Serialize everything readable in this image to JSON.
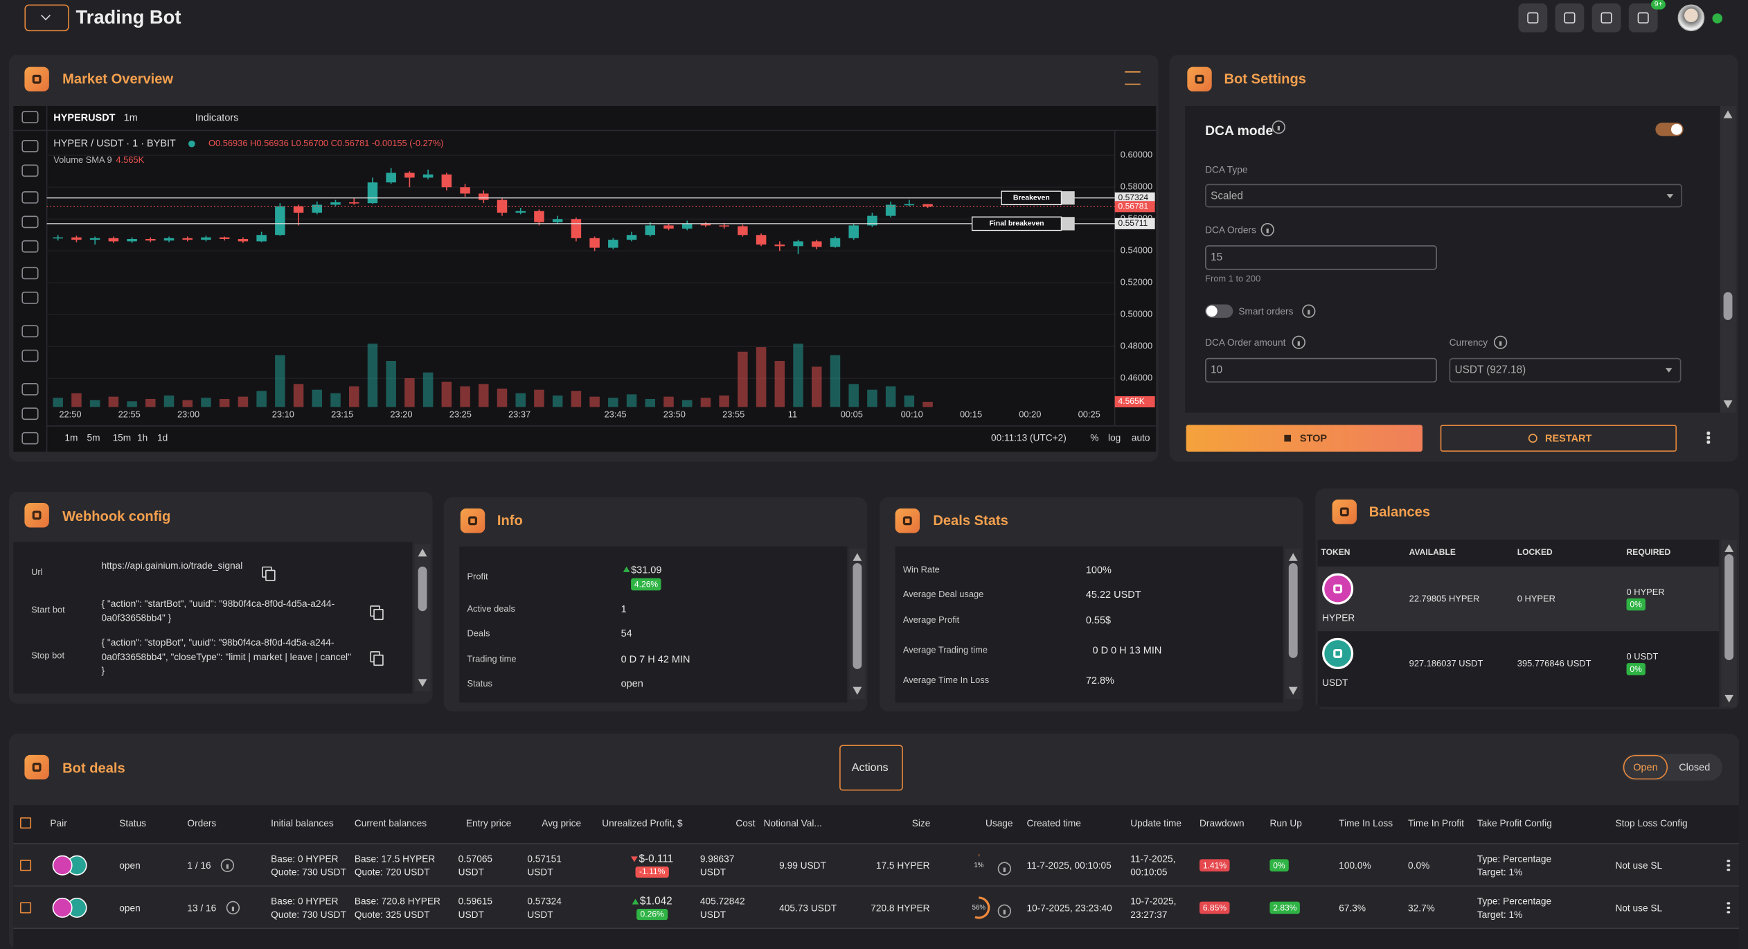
{
  "header": {
    "title": "Trading Bot",
    "badge": "9+"
  },
  "market_overview": {
    "title": "Market Overview",
    "toolbar": {
      "symbol": "HYPERUSDT",
      "interval": "1m",
      "indicators": "Indicators"
    },
    "legend": {
      "pair": "HYPER / USDT · 1 · BYBIT",
      "ohlc": "O0.56936 H0.56936 L0.56700 C0.56781 -0.00155 (-0.27%)",
      "volume": "Volume SMA 9",
      "volume_value": "4.565K"
    },
    "footer": {
      "ranges": [
        "1m",
        "5m",
        "15m",
        "1h",
        "1d"
      ],
      "clock": "00:11:13 (UTC+2)",
      "options": [
        "%",
        "log",
        "auto"
      ]
    }
  },
  "chart_data": {
    "type": "candlestick",
    "up_color": "#26a69a",
    "down_color": "#ef5350",
    "ylim": [
      0.442,
      0.61
    ],
    "yticks": [
      {
        "value": 0.46,
        "label": "0.46000"
      },
      {
        "value": 0.48,
        "label": "0.48000"
      },
      {
        "value": 0.5,
        "label": "0.50000"
      },
      {
        "value": 0.52,
        "label": "0.52000"
      },
      {
        "value": 0.54,
        "label": "0.54000"
      },
      {
        "value": 0.56,
        "label": "0.56000"
      },
      {
        "value": 0.58,
        "label": "0.58000"
      },
      {
        "value": 0.6,
        "label": "0.60000"
      }
    ],
    "time_labels": [
      "22:50",
      "22:55",
      "23:00",
      "23:10",
      "23:15",
      "23:20",
      "23:25",
      "23:37",
      "23:45",
      "23:50",
      "23:55",
      "11",
      "00:05",
      "00:10",
      "00:15",
      "00:20",
      "00:25"
    ],
    "open": [
      0.548,
      0.5485,
      0.547,
      0.548,
      0.546,
      0.5475,
      0.5465,
      0.548,
      0.547,
      0.5485,
      0.5475,
      0.546,
      0.55,
      0.568,
      0.564,
      0.569,
      0.5705,
      0.57,
      0.583,
      0.589,
      0.586,
      0.588,
      0.58,
      0.576,
      0.572,
      0.564,
      0.565,
      0.558,
      0.56,
      0.548,
      0.542,
      0.547,
      0.55,
      0.556,
      0.554,
      0.557,
      0.556,
      0.5555,
      0.55,
      0.544,
      0.543,
      0.546,
      0.5425,
      0.548,
      0.556,
      0.562,
      0.569,
      0.56936
    ],
    "high": [
      0.55,
      0.5495,
      0.549,
      0.549,
      0.5485,
      0.5485,
      0.549,
      0.549,
      0.5495,
      0.549,
      0.5485,
      0.552,
      0.57,
      0.569,
      0.571,
      0.572,
      0.573,
      0.586,
      0.592,
      0.59,
      0.591,
      0.589,
      0.582,
      0.578,
      0.573,
      0.567,
      0.566,
      0.562,
      0.561,
      0.549,
      0.548,
      0.552,
      0.558,
      0.557,
      0.559,
      0.558,
      0.5575,
      0.5565,
      0.551,
      0.546,
      0.547,
      0.547,
      0.549,
      0.557,
      0.564,
      0.571,
      0.572,
      0.56936
    ],
    "low": [
      0.5465,
      0.5455,
      0.544,
      0.545,
      0.545,
      0.5455,
      0.5455,
      0.546,
      0.546,
      0.5465,
      0.545,
      0.5455,
      0.5495,
      0.556,
      0.563,
      0.568,
      0.569,
      0.5695,
      0.582,
      0.58,
      0.585,
      0.578,
      0.574,
      0.57,
      0.562,
      0.563,
      0.556,
      0.557,
      0.546,
      0.54,
      0.541,
      0.546,
      0.549,
      0.553,
      0.553,
      0.555,
      0.554,
      0.549,
      0.543,
      0.54,
      0.538,
      0.541,
      0.542,
      0.547,
      0.555,
      0.561,
      0.568,
      0.567
    ],
    "close": [
      0.5485,
      0.547,
      0.548,
      0.546,
      0.5475,
      0.5465,
      0.548,
      0.547,
      0.5485,
      0.5475,
      0.546,
      0.55,
      0.568,
      0.564,
      0.569,
      0.5705,
      0.57,
      0.583,
      0.589,
      0.586,
      0.588,
      0.58,
      0.576,
      0.572,
      0.564,
      0.565,
      0.558,
      0.56,
      0.548,
      0.542,
      0.547,
      0.55,
      0.556,
      0.554,
      0.557,
      0.556,
      0.5555,
      0.55,
      0.544,
      0.543,
      0.546,
      0.5425,
      0.548,
      0.556,
      0.562,
      0.569,
      0.56936,
      0.56781
    ],
    "volume": [
      8000,
      12000,
      6000,
      9000,
      5000,
      7000,
      10000,
      6000,
      8000,
      7000,
      9000,
      14000,
      45000,
      20000,
      15000,
      12000,
      18000,
      55000,
      40000,
      25000,
      30000,
      22000,
      18000,
      20000,
      16000,
      12000,
      15000,
      10000,
      14000,
      9000,
      8000,
      11000,
      7000,
      9000,
      6000,
      8000,
      10000,
      48000,
      52000,
      40000,
      55000,
      35000,
      45000,
      20000,
      15000,
      18000,
      10000,
      4565
    ],
    "vlim": [
      0,
      60000
    ],
    "price_lines": [
      {
        "label": "Breakeven",
        "value": 0.57324,
        "value_label": "0.57324"
      },
      {
        "label": "Final breakeven",
        "value": 0.55711,
        "value_label": "0.55711"
      }
    ],
    "current_price": {
      "value": 0.56781,
      "label": "0.56781"
    }
  },
  "bot_settings": {
    "title": "Bot Settings",
    "dca_mode": "DCA mode",
    "dca_type_label": "DCA Type",
    "dca_type": "Scaled",
    "dca_orders_label": "DCA Orders",
    "dca_orders": "15",
    "dca_orders_hint": "From 1 to 200",
    "smart_orders": "Smart orders",
    "order_amount_label": "DCA Order amount",
    "order_amount": "10",
    "currency_label": "Currency",
    "currency": "USDT (927.18)",
    "stop": "STOP",
    "restart": "RESTART"
  },
  "webhook": {
    "title": "Webhook config",
    "rows": [
      {
        "label": "Url",
        "lines": [
          "https://api.gainium.io/trade_signal"
        ]
      },
      {
        "label": "Start bot",
        "lines": [
          "{ \"action\": \"startBot\", \"uuid\": \"98b0f4ca-8f0d-4d5a-a244-",
          "0a0f33658bb4\" }"
        ]
      },
      {
        "label": "Stop bot",
        "lines": [
          "{ \"action\": \"stopBot\", \"uuid\": \"98b0f4ca-8f0d-4d5a-a244-",
          "0a0f33658bb4\", \"closeType\": \"limit | market | leave | cancel\"",
          "}"
        ]
      }
    ]
  },
  "info": {
    "title": "Info",
    "profit_label": "Profit",
    "profit": "$31.09",
    "profit_pct": "4.26%",
    "rows": [
      {
        "label": "Active deals",
        "value": "1"
      },
      {
        "label": "Deals",
        "value": "54"
      },
      {
        "label": "Trading time",
        "value": "0 D 7 H 42 MIN"
      },
      {
        "label": "Status",
        "value": "open"
      }
    ]
  },
  "deals_stats": {
    "title": "Deals Stats",
    "rows": [
      {
        "label": "Win Rate",
        "value": "100%"
      },
      {
        "label": "Average Deal usage",
        "value": "45.22 USDT"
      },
      {
        "label": "Average Profit",
        "value": "0.55$"
      },
      {
        "label": "Average Trading time",
        "value": "0 D 0 H 13 MIN"
      },
      {
        "label": "Average Time In Loss",
        "value": "72.8%"
      }
    ]
  },
  "balances": {
    "title": "Balances",
    "columns": [
      "TOKEN",
      "AVAILABLE",
      "LOCKED",
      "REQUIRED"
    ],
    "rows": [
      {
        "token": "HYPER",
        "available": "22.79805 HYPER",
        "locked": "0 HYPER",
        "required": "0 HYPER",
        "required_pct": "0%",
        "color": "#d23fb0"
      },
      {
        "token": "USDT",
        "available": "927.186037 USDT",
        "locked": "395.776846 USDT",
        "required": "0 USDT",
        "required_pct": "0%",
        "color": "#26a394"
      }
    ]
  },
  "bot_deals": {
    "title": "Bot deals",
    "actions": "Actions",
    "tabs": [
      "Open",
      "Closed"
    ],
    "columns": [
      "Pair",
      "Status",
      "Orders",
      "Initial balances",
      "Current balances",
      "Entry price",
      "Avg price",
      "Unrealized Profit, $",
      "Cost",
      "Notional Val...",
      "Size",
      "Usage",
      "Created time",
      "Update time",
      "Drawdown",
      "Run Up",
      "Time In Loss",
      "Time In Profit",
      "Take Profit Config",
      "Stop Loss Config"
    ],
    "rows": [
      {
        "status": "open",
        "orders": "1 / 16",
        "initial": [
          "Base: 0 HYPER",
          "Quote: 730 USDT"
        ],
        "current": [
          "Base: 17.5 HYPER",
          "Quote: 720 USDT"
        ],
        "entry": "0.57065 USDT",
        "avg": "0.57151 USDT",
        "profit": "$-0.111",
        "profit_pct": "-1.11%",
        "profit_color": "#ef5350",
        "cost": "9.98637 USDT",
        "notional": "9.99 USDT",
        "size": "17.5 HYPER",
        "usage": {
          "value": 1,
          "label": "1%"
        },
        "created": "11-7-2025, 00:10:05",
        "updated": "11-7-2025, 00:10:05",
        "drawdown": "1.41%",
        "run_up": "0%",
        "time_in_loss": "100.0%",
        "time_in_profit": "0.0%",
        "take_profit": [
          "Type: Percentage",
          "Target: 1%"
        ],
        "stop_loss": "Not use SL"
      },
      {
        "status": "open",
        "orders": "13 / 16",
        "initial": [
          "Base: 0 HYPER",
          "Quote: 730 USDT"
        ],
        "current": [
          "Base: 720.8 HYPER",
          "Quote: 325 USDT"
        ],
        "entry": "0.59615 USDT",
        "avg": "0.57324 USDT",
        "profit": "$1.042",
        "profit_pct": "0.26%",
        "profit_color": "#2fb344",
        "cost": "405.72842 USDT",
        "notional": "405.73 USDT",
        "size": "720.8 HYPER",
        "usage": {
          "value": 56,
          "label": "56%"
        },
        "created": "10-7-2025, 23:23:40",
        "updated": "10-7-2025, 23:27:37",
        "drawdown": "6.85%",
        "run_up": "2.83%",
        "time_in_loss": "67.3%",
        "time_in_profit": "32.7%",
        "take_profit": [
          "Type: Percentage",
          "Target: 1%"
        ],
        "stop_loss": "Not use SL"
      }
    ]
  }
}
